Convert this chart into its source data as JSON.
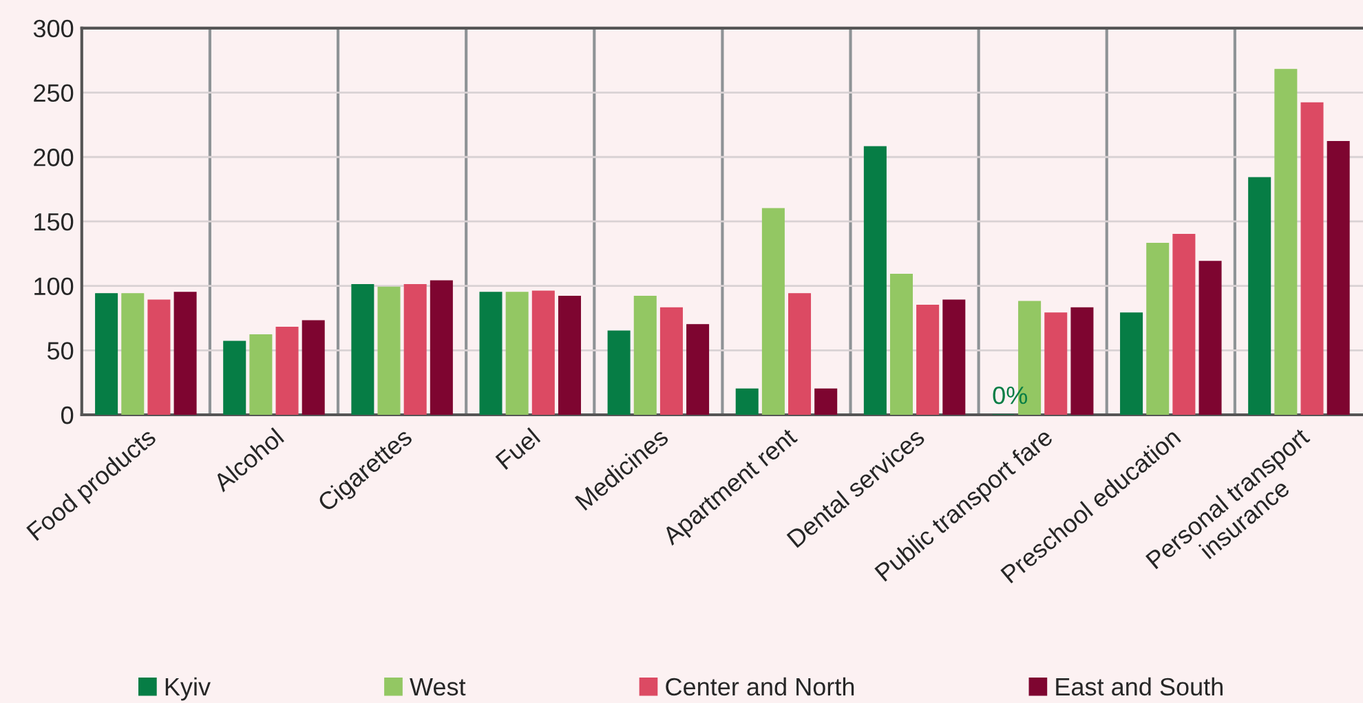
{
  "chart_data": {
    "type": "bar",
    "categories": [
      "Food products",
      "Alcohol",
      "Cigarettes",
      "Fuel",
      "Medicines",
      "Apartment rent",
      "Dental services",
      "Public transport fare",
      "Preschool education",
      "Personal transport\ninsurance"
    ],
    "series": [
      {
        "name": "Kyiv",
        "color": "#067d45",
        "values": [
          94,
          57,
          101,
          95,
          65,
          20,
          208,
          0,
          79,
          184
        ]
      },
      {
        "name": "West",
        "color": "#93c763",
        "values": [
          94,
          62,
          99,
          95,
          92,
          160,
          109,
          88,
          133,
          268
        ]
      },
      {
        "name": "Center and North",
        "color": "#dc4a63",
        "values": [
          89,
          68,
          101,
          96,
          83,
          94,
          85,
          79,
          140,
          242
        ]
      },
      {
        "name": "East and South",
        "color": "#7e0530",
        "values": [
          95,
          73,
          104,
          92,
          70,
          20,
          89,
          83,
          119,
          212
        ]
      }
    ],
    "annotations": [
      {
        "text": "0%",
        "x": "Public transport fare",
        "y": 0
      }
    ],
    "ylim": [
      0,
      300
    ],
    "yticks": [
      0,
      50,
      100,
      150,
      200,
      250,
      300
    ],
    "grid": "y",
    "legend": "bottom"
  }
}
